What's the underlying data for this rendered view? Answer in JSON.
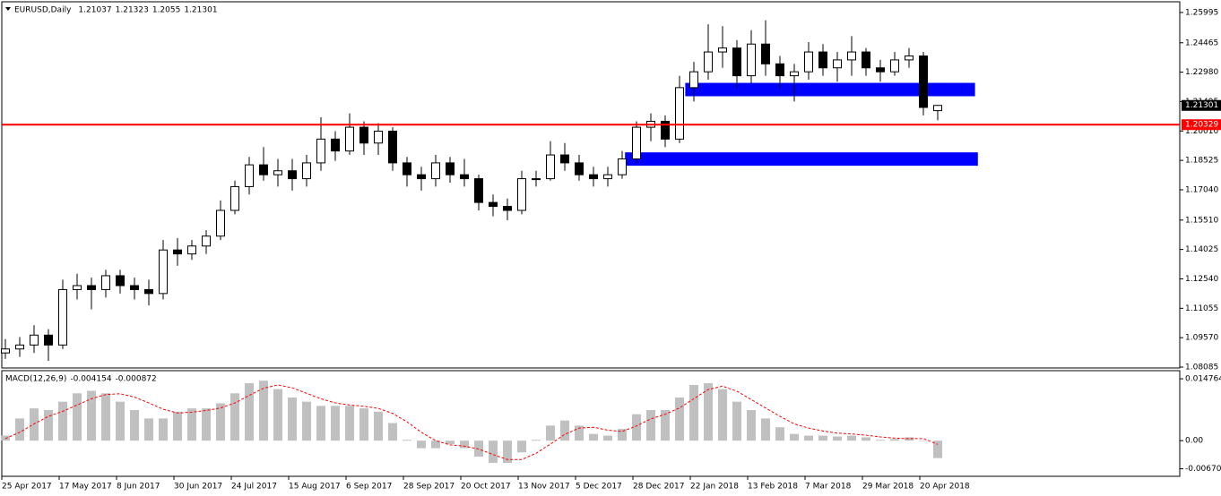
{
  "chart_data": [
    {
      "type": "candlestick",
      "title": "EURUSD,Daily",
      "categories": [
        "25 Apr 2017",
        null,
        null,
        null,
        "17 May 2017",
        null,
        null,
        null,
        "8 Jun 2017",
        null,
        null,
        null,
        "30 Jun 2017",
        null,
        null,
        null,
        "24 Jul 2017",
        null,
        null,
        null,
        "15 Aug 2017",
        null,
        null,
        null,
        "6 Sep 2017",
        null,
        null,
        null,
        "28 Sep 2017",
        null,
        null,
        null,
        "20 Oct 2017",
        null,
        null,
        null,
        "13 Nov 2017",
        null,
        null,
        null,
        "5 Dec 2017",
        null,
        null,
        null,
        "28 Dec 2017",
        null,
        null,
        null,
        "22 Jan 2018",
        null,
        null,
        null,
        "13 Feb 2018",
        null,
        null,
        null,
        "7 Mar 2018",
        null,
        null,
        null,
        "29 Mar 2018",
        null,
        null,
        null,
        "20 Apr 2018",
        null
      ],
      "ohlc": [
        [
          1.088,
          1.095,
          1.085,
          1.09
        ],
        [
          1.09,
          1.096,
          1.086,
          1.092
        ],
        [
          1.092,
          1.102,
          1.088,
          1.097
        ],
        [
          1.097,
          1.1,
          1.084,
          1.092
        ],
        [
          1.092,
          1.125,
          1.09,
          1.12
        ],
        [
          1.12,
          1.128,
          1.115,
          1.122
        ],
        [
          1.122,
          1.126,
          1.11,
          1.12
        ],
        [
          1.12,
          1.13,
          1.116,
          1.127
        ],
        [
          1.127,
          1.13,
          1.118,
          1.122
        ],
        [
          1.122,
          1.126,
          1.115,
          1.12
        ],
        [
          1.12,
          1.125,
          1.112,
          1.118
        ],
        [
          1.118,
          1.145,
          1.115,
          1.14
        ],
        [
          1.14,
          1.146,
          1.132,
          1.138
        ],
        [
          1.138,
          1.145,
          1.135,
          1.142
        ],
        [
          1.142,
          1.15,
          1.138,
          1.147
        ],
        [
          1.147,
          1.165,
          1.145,
          1.16
        ],
        [
          1.16,
          1.175,
          1.158,
          1.172
        ],
        [
          1.172,
          1.187,
          1.168,
          1.183
        ],
        [
          1.183,
          1.192,
          1.175,
          1.178
        ],
        [
          1.178,
          1.186,
          1.172,
          1.18
        ],
        [
          1.18,
          1.186,
          1.17,
          1.176
        ],
        [
          1.176,
          1.188,
          1.172,
          1.184
        ],
        [
          1.184,
          1.207,
          1.18,
          1.196
        ],
        [
          1.196,
          1.2,
          1.185,
          1.19
        ],
        [
          1.19,
          1.209,
          1.188,
          1.202
        ],
        [
          1.202,
          1.205,
          1.188,
          1.194
        ],
        [
          1.194,
          1.204,
          1.188,
          1.2
        ],
        [
          1.2,
          1.202,
          1.18,
          1.184
        ],
        [
          1.184,
          1.187,
          1.172,
          1.178
        ],
        [
          1.178,
          1.182,
          1.17,
          1.176
        ],
        [
          1.176,
          1.188,
          1.172,
          1.184
        ],
        [
          1.184,
          1.187,
          1.174,
          1.178
        ],
        [
          1.178,
          1.186,
          1.172,
          1.176
        ],
        [
          1.176,
          1.178,
          1.16,
          1.164
        ],
        [
          1.164,
          1.168,
          1.157,
          1.162
        ],
        [
          1.162,
          1.166,
          1.155,
          1.16
        ],
        [
          1.16,
          1.18,
          1.158,
          1.176
        ],
        [
          1.176,
          1.18,
          1.172,
          1.176
        ],
        [
          1.176,
          1.195,
          1.175,
          1.188
        ],
        [
          1.188,
          1.194,
          1.18,
          1.184
        ],
        [
          1.184,
          1.188,
          1.175,
          1.178
        ],
        [
          1.178,
          1.182,
          1.172,
          1.176
        ],
        [
          1.176,
          1.182,
          1.172,
          1.178
        ],
        [
          1.178,
          1.19,
          1.176,
          1.186
        ],
        [
          1.186,
          1.205,
          1.184,
          1.202
        ],
        [
          1.202,
          1.209,
          1.195,
          1.205
        ],
        [
          1.205,
          1.208,
          1.192,
          1.196
        ],
        [
          1.196,
          1.228,
          1.194,
          1.222
        ],
        [
          1.222,
          1.235,
          1.215,
          1.23
        ],
        [
          1.23,
          1.254,
          1.226,
          1.24
        ],
        [
          1.24,
          1.253,
          1.232,
          1.242
        ],
        [
          1.242,
          1.246,
          1.222,
          1.228
        ],
        [
          1.228,
          1.251,
          1.224,
          1.244
        ],
        [
          1.244,
          1.256,
          1.228,
          1.234
        ],
        [
          1.234,
          1.238,
          1.222,
          1.228
        ],
        [
          1.228,
          1.234,
          1.215,
          1.23
        ],
        [
          1.23,
          1.245,
          1.226,
          1.24
        ],
        [
          1.24,
          1.244,
          1.228,
          1.232
        ],
        [
          1.232,
          1.24,
          1.225,
          1.236
        ],
        [
          1.236,
          1.248,
          1.228,
          1.24
        ],
        [
          1.24,
          1.242,
          1.228,
          1.232
        ],
        [
          1.232,
          1.236,
          1.225,
          1.23
        ],
        [
          1.23,
          1.24,
          1.228,
          1.236
        ],
        [
          1.236,
          1.242,
          1.232,
          1.238
        ],
        [
          1.238,
          1.24,
          1.208,
          1.212
        ],
        [
          1.21037,
          1.21323,
          1.2055,
          1.21301
        ]
      ],
      "up_color": "#ffffff",
      "down_color": "#000000",
      "ylim": [
        1.0804,
        1.26535
      ],
      "yticks": [
        1.25995,
        1.24465,
        {
          "value": 1.2298,
          "label": "1.22980"
        },
        1.21495,
        {
          "value": 1.2001,
          "label": "1.20010"
        },
        1.18525,
        {
          "value": 1.1704,
          "label": "1.17040"
        },
        {
          "value": 1.1551,
          "label": "1.15510"
        },
        1.14025,
        {
          "value": 1.1254,
          "label": "1.12540"
        },
        1.11055,
        {
          "value": 1.0957,
          "label": "1.09570"
        },
        1.08085
      ],
      "hlines": [
        {
          "value": 1.20329,
          "color": "#ff0000"
        }
      ],
      "zones": [
        {
          "from": 47.4,
          "to": 67.6,
          "low": 1.21765,
          "high": 1.2244,
          "color": "#0000ff"
        },
        {
          "from": 43.2,
          "to": 67.8,
          "low": 1.18255,
          "high": 1.1893,
          "color": "#0000ff"
        }
      ]
    },
    {
      "type": "macd",
      "title": "MACD(12,26,9)",
      "histogram": [
        0.0012,
        0.0053,
        0.0077,
        0.0073,
        0.0093,
        0.0113,
        0.0119,
        0.0113,
        0.0093,
        0.0073,
        0.0053,
        0.0053,
        0.0069,
        0.0077,
        0.0077,
        0.0089,
        0.0113,
        0.0137,
        0.0143,
        0.0123,
        0.0103,
        0.0093,
        0.0083,
        0.0083,
        0.0083,
        0.0077,
        0.0069,
        0.0042,
        0.0002,
        -0.0018,
        -0.0018,
        -0.0008,
        -0.0018,
        -0.0038,
        -0.0053,
        -0.0053,
        -0.0028,
        0.0002,
        0.0036,
        0.0048,
        0.0036,
        0.0016,
        0.0012,
        0.0028,
        0.0063,
        0.0073,
        0.0073,
        0.0103,
        0.0133,
        0.0137,
        0.0123,
        0.0093,
        0.0073,
        0.0053,
        0.0032,
        0.0016,
        0.0012,
        0.0012,
        0.001,
        0.0012,
        0.0008,
        0.0002,
        0.0004,
        0.0008,
        0,
        -0.004154
      ],
      "signal": [
        0.0005,
        0.002,
        0.004,
        0.0058,
        0.007,
        0.0085,
        0.01,
        0.011,
        0.0112,
        0.0104,
        0.009,
        0.0075,
        0.0066,
        0.0068,
        0.0072,
        0.0078,
        0.009,
        0.0108,
        0.0125,
        0.0133,
        0.0126,
        0.0113,
        0.01,
        0.009,
        0.0085,
        0.0082,
        0.0077,
        0.0065,
        0.0045,
        0.002,
        0.0,
        -0.001,
        -0.0013,
        -0.002,
        -0.0033,
        -0.0045,
        -0.0045,
        -0.003,
        -0.0008,
        0.0015,
        0.003,
        0.0032,
        0.0025,
        0.0022,
        0.0035,
        0.0052,
        0.0063,
        0.0078,
        0.01,
        0.0122,
        0.013,
        0.0118,
        0.0098,
        0.0078,
        0.0058,
        0.004,
        0.003,
        0.0023,
        0.0018,
        0.0016,
        0.0013,
        0.0009,
        0.0006,
        0.0005,
        0.0005,
        -0.000872
      ],
      "histogram_color": "#c0c0c0",
      "signal_color": "#ff0000",
      "ylim": [
        -0.0085,
        0.0167
      ],
      "yticks": [
        0.014764,
        {
          "value": 0,
          "label": "0.00"
        },
        -0.006708
      ]
    }
  ]
}
